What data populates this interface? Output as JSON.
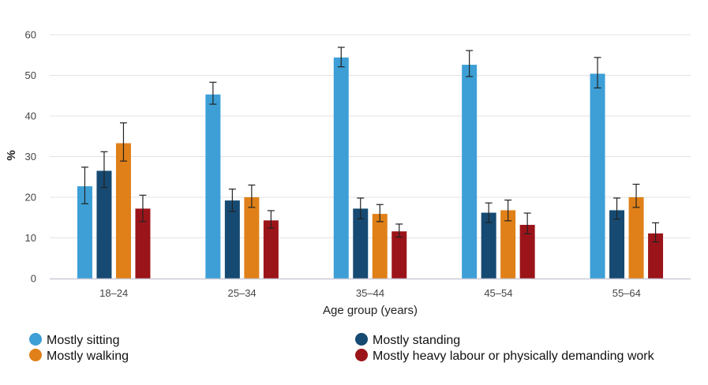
{
  "chart_data": {
    "type": "bar",
    "title": "",
    "xlabel": "Age group (years)",
    "ylabel": "%",
    "ylim": [
      0,
      60
    ],
    "yticks": [
      0,
      10,
      20,
      30,
      40,
      50,
      60
    ],
    "grid": true,
    "categories": [
      "18–24",
      "25–34",
      "35–44",
      "45–54",
      "55–64"
    ],
    "series": [
      {
        "name": "Mostly sitting",
        "color": "#3d9fd6",
        "values": [
          22.7,
          45.3,
          54.4,
          52.6,
          50.4
        ],
        "error_low": [
          18.4,
          42.9,
          52.1,
          49.7,
          46.9
        ],
        "error_high": [
          27.4,
          48.3,
          56.9,
          56.1,
          54.4
        ]
      },
      {
        "name": "Mostly standing",
        "color": "#164a72",
        "values": [
          26.5,
          19.2,
          17.2,
          16.2,
          16.8
        ],
        "error_low": [
          22.4,
          16.5,
          14.7,
          13.8,
          14.6
        ],
        "error_high": [
          31.2,
          22.0,
          19.8,
          18.6,
          19.8
        ]
      },
      {
        "name": "Mostly walking",
        "color": "#e08018",
        "values": [
          33.3,
          20.0,
          15.9,
          16.8,
          20.0
        ],
        "error_low": [
          28.9,
          17.5,
          14.0,
          14.2,
          17.5
        ],
        "error_high": [
          38.3,
          23.0,
          18.2,
          19.3,
          23.2
        ]
      },
      {
        "name": "Mostly heavy labour or physically demanding work",
        "color": "#9b1419",
        "values": [
          17.2,
          14.3,
          11.6,
          13.2,
          11.1
        ],
        "error_low": [
          14.0,
          12.4,
          10.2,
          11.0,
          9.0
        ],
        "error_high": [
          20.5,
          16.7,
          13.4,
          16.1,
          13.7
        ]
      }
    ],
    "legend_position": "bottom",
    "legend_order": [
      0,
      1,
      2,
      3
    ]
  }
}
